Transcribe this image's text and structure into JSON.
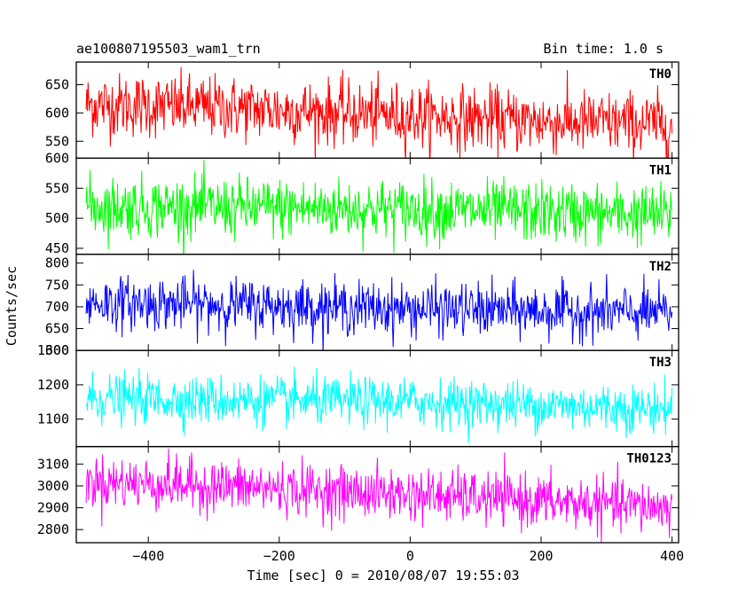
{
  "header": {
    "left": "ae100807195503_wam1_trn",
    "right": "Bin time: 1.0 s"
  },
  "chart_data": {
    "type": "line",
    "title": "ae100807195503_wam1_trn",
    "subtitle": "Bin time: 1.0 s",
    "xlabel": "Time [sec] 0 = 2010/08/07 19:55:03",
    "ylabel": "Counts/sec",
    "xlim": [
      -510,
      410
    ],
    "x_range": [
      -495,
      400
    ],
    "bin_time": 1.0,
    "xticks": [
      -400,
      -200,
      0,
      200,
      400
    ],
    "xtick_labels": [
      "−400",
      "−200",
      "0",
      "200",
      "400"
    ],
    "grid": false,
    "legend": "none",
    "panels": [
      {
        "name": "TH0",
        "color": "#ff0000",
        "ylim": [
          520,
          690
        ],
        "yticks": [
          550,
          600,
          650
        ],
        "ytick_labels": [
          "550",
          "600",
          "650"
        ],
        "trend": [
          [
            -495,
            615
          ],
          [
            -300,
            610
          ],
          [
            0,
            595
          ],
          [
            200,
            585
          ],
          [
            400,
            580
          ]
        ],
        "noise_sd": 28
      },
      {
        "name": "TH1",
        "color": "#00ff00",
        "ylim": [
          440,
          600
        ],
        "yticks": [
          450,
          500,
          550,
          600
        ],
        "ytick_labels": [
          "450",
          "500",
          "550",
          "600"
        ],
        "trend": [
          [
            -495,
            520
          ],
          [
            -300,
            518
          ],
          [
            0,
            515
          ],
          [
            200,
            510
          ],
          [
            400,
            505
          ]
        ],
        "noise_sd": 25
      },
      {
        "name": "TH2",
        "color": "#0000ff",
        "ylim": [
          600,
          820
        ],
        "yticks": [
          600,
          650,
          700,
          750,
          800
        ],
        "ytick_labels": [
          "600",
          "650",
          "700",
          "750",
          "800"
        ],
        "trend": [
          [
            -495,
            710
          ],
          [
            -300,
            705
          ],
          [
            0,
            695
          ],
          [
            200,
            690
          ],
          [
            400,
            685
          ]
        ],
        "noise_sd": 30
      },
      {
        "name": "TH3",
        "color": "#00ffff",
        "ylim": [
          1020,
          1300
        ],
        "yticks": [
          1100,
          1200,
          1300
        ],
        "ytick_labels": [
          "1100",
          "1200",
          "1300"
        ],
        "trend": [
          [
            -495,
            1160
          ],
          [
            -300,
            1155
          ],
          [
            0,
            1150
          ],
          [
            200,
            1140
          ],
          [
            400,
            1130
          ]
        ],
        "noise_sd": 35
      },
      {
        "name": "TH0123",
        "color": "#ff00ff",
        "ylim": [
          2740,
          3180
        ],
        "yticks": [
          2800,
          2900,
          3000,
          3100
        ],
        "ytick_labels": [
          "2800",
          "2900",
          "3000",
          "3100"
        ],
        "trend": [
          [
            -495,
            3020
          ],
          [
            -300,
            3000
          ],
          [
            0,
            2960
          ],
          [
            200,
            2930
          ],
          [
            400,
            2900
          ]
        ],
        "noise_sd": 60
      }
    ]
  }
}
